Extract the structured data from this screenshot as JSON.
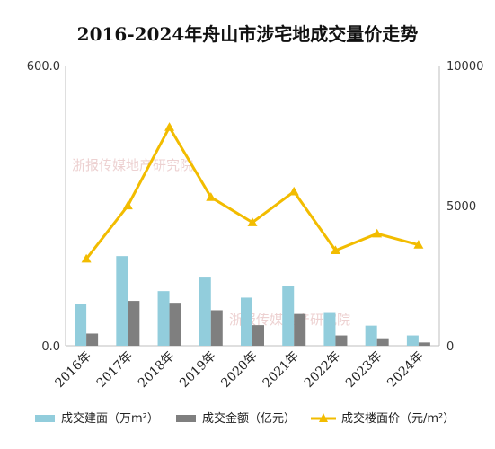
{
  "chart_data": {
    "type": "bar+line",
    "title": "2016-2024年舟山市涉宅地成交量价走势",
    "categories": [
      "2016年",
      "2017年",
      "2018年",
      "2019年",
      "2020年",
      "2021年",
      "2022年",
      "2023年",
      "2024年"
    ],
    "series": [
      {
        "name": "成交建面（万m²）",
        "type": "bar",
        "axis": "left",
        "color": "#92cddc",
        "values": [
          90,
          192,
          117,
          146,
          103,
          127,
          72,
          43,
          22
        ]
      },
      {
        "name": "成交金额（亿元）",
        "type": "bar",
        "axis": "left",
        "color": "#7f7f7f",
        "values": [
          26,
          96,
          92,
          76,
          44,
          68,
          22,
          16,
          7
        ]
      },
      {
        "name": "成交楼面价（元/m²）",
        "type": "line",
        "axis": "right",
        "color": "#f2bc00",
        "values": [
          3100,
          5000,
          7800,
          5300,
          4400,
          5500,
          3400,
          4000,
          3600
        ]
      }
    ],
    "y_left": {
      "ylim": [
        0,
        600
      ],
      "ticks": [
        "0.0",
        "600.0"
      ]
    },
    "y_right": {
      "ylim": [
        0,
        10000
      ],
      "ticks": [
        "0",
        "5000",
        "10000"
      ]
    },
    "grid": false,
    "legend": "bottom"
  },
  "watermark": "浙报传媒地产研究院"
}
